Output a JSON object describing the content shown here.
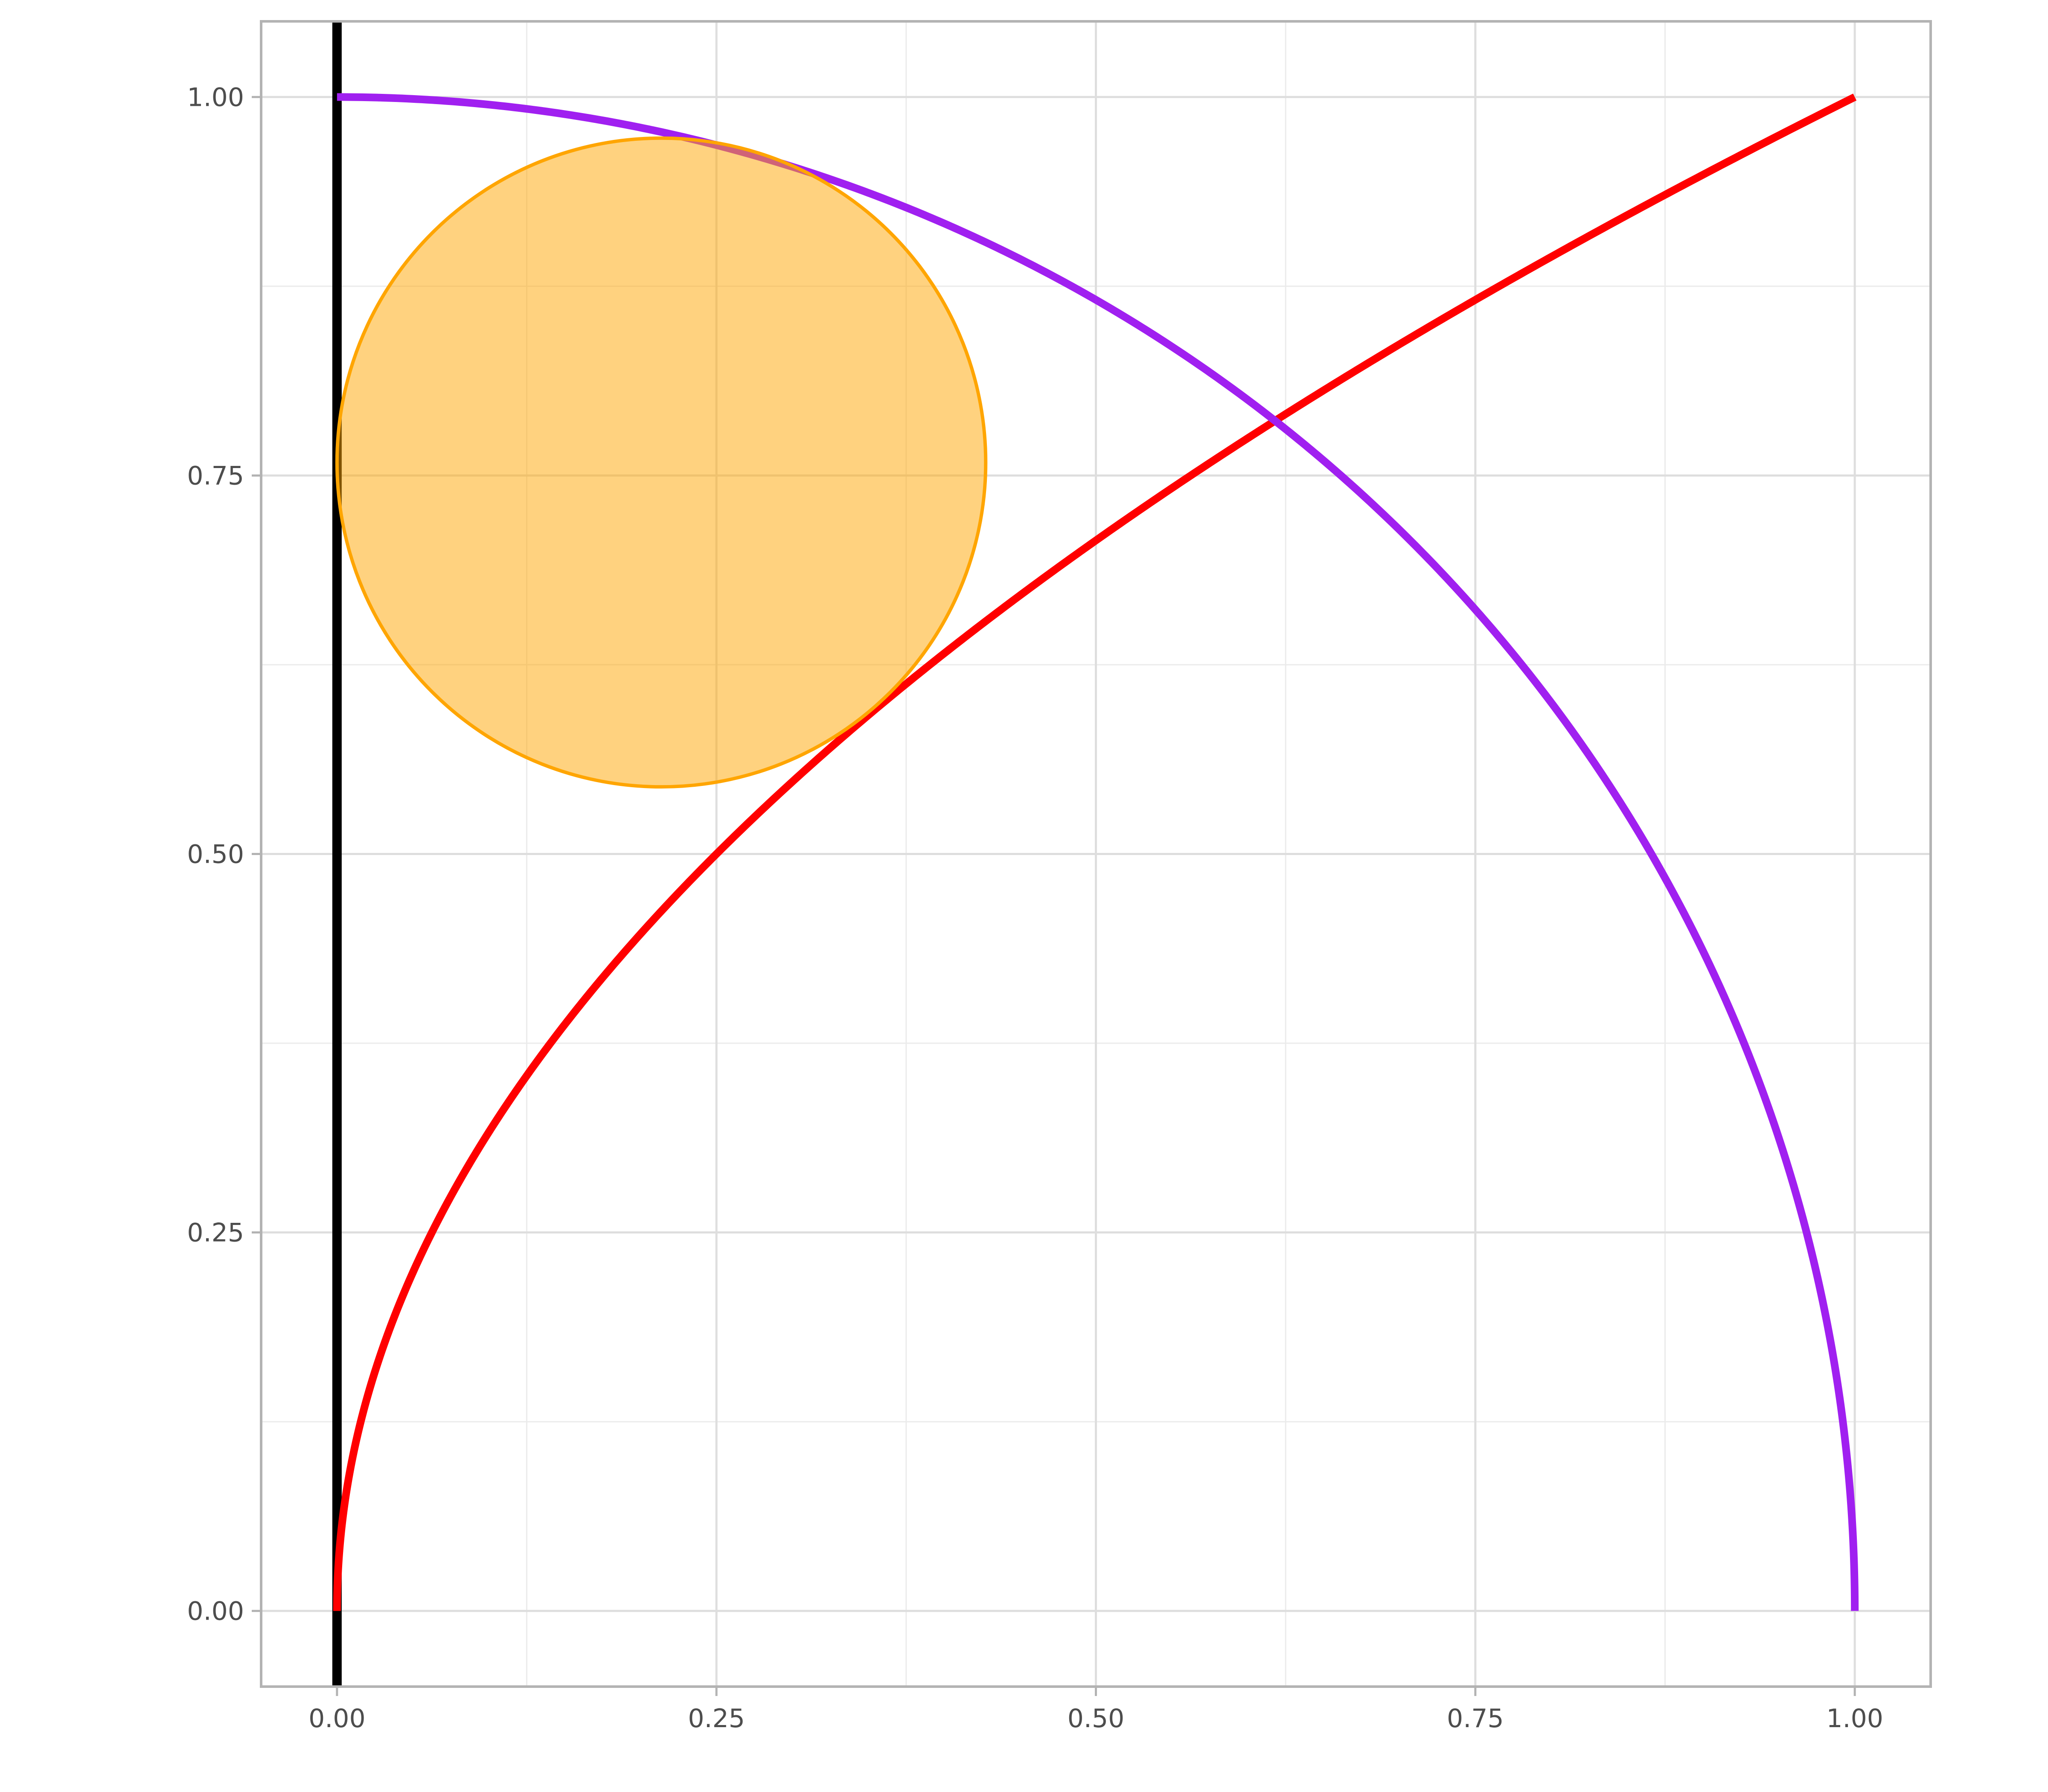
{
  "chart_data": {
    "type": "line",
    "title": "",
    "xlabel": "",
    "ylabel": "",
    "xlim": [
      -0.05,
      1.05
    ],
    "ylim": [
      -0.05,
      1.05
    ],
    "x_ticks": [
      0,
      0.25,
      0.5,
      0.75,
      1.0
    ],
    "x_tick_labels": [
      "0.00",
      "0.25",
      "0.50",
      "0.75",
      "1.00"
    ],
    "y_ticks": [
      0,
      0.25,
      0.5,
      0.75,
      1.0
    ],
    "y_tick_labels": [
      "0.00",
      "0.25",
      "0.50",
      "0.75",
      "1.00"
    ],
    "x_minor_ticks": [
      0.125,
      0.375,
      0.625,
      0.875
    ],
    "y_minor_ticks": [
      0.125,
      0.375,
      0.625,
      0.875
    ],
    "grid": true,
    "legend": "none",
    "series": [
      {
        "kind": "vline",
        "x": 0,
        "color": "#000000"
      },
      {
        "kind": "curve",
        "function": "y = sqrt(x)",
        "domain": [
          0,
          1
        ],
        "color": "#ff0000"
      },
      {
        "kind": "curve",
        "function": "y = sqrt(1 - x^2)",
        "domain": [
          0,
          1
        ],
        "color": "#a020f0"
      },
      {
        "kind": "circle",
        "center": [
          0.2137,
          0.7586
        ],
        "radius": 0.2137,
        "fill": "#ffa500",
        "fill_opacity": 0.5,
        "stroke": "#ffa500"
      }
    ]
  }
}
